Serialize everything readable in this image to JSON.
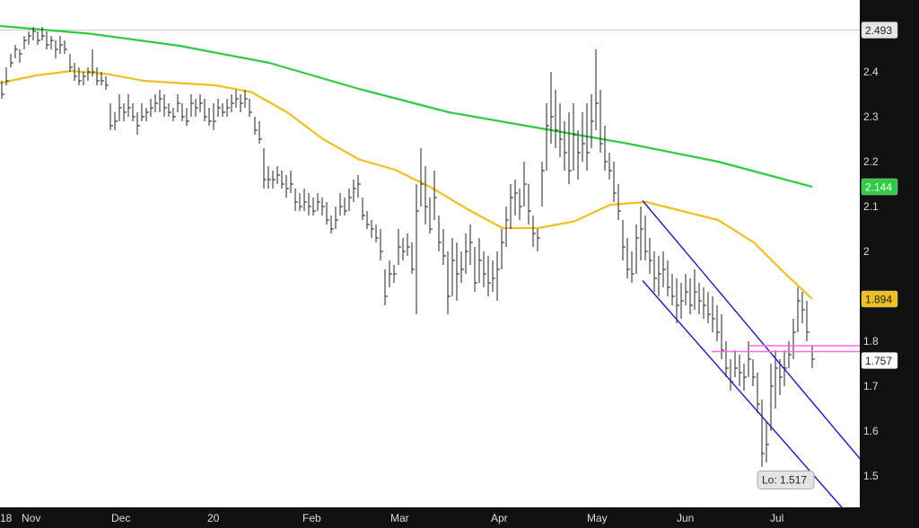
{
  "chart_data": {
    "type": "ohlc",
    "x_ticks": [
      "18",
      "Nov",
      "Dec",
      "20",
      "Feb",
      "Mar",
      "Apr",
      "May",
      "Jun",
      "Jul"
    ],
    "y_ticks": [
      1.5,
      1.6,
      1.7,
      1.8,
      1.9,
      2,
      2.1,
      2.2,
      2.3,
      2.4
    ],
    "ylim": [
      1.43,
      2.56
    ],
    "grid": false,
    "colors": {
      "bars": "#222222",
      "ma_short": "#f0c020",
      "ma_long": "#2ecc40",
      "channel": "#1a1acc",
      "resistance": "#ff66ee",
      "pane": "#111111"
    },
    "price_badges": [
      {
        "id": "reference",
        "value": "2.493",
        "bg": "#e6e6e6",
        "fg": "#222222"
      },
      {
        "id": "ma_long",
        "value": "2.144",
        "bg": "#2ecc40",
        "fg": "#ffffff"
      },
      {
        "id": "ma_short",
        "value": "1.894",
        "bg": "#f0c020",
        "fg": "#222222"
      },
      {
        "id": "last",
        "value": "1.757",
        "bg": "#ffffff",
        "fg": "#222222"
      }
    ],
    "annotation": {
      "label": "Lo: 1.517",
      "value": 1.517
    },
    "reference_line": 2.493,
    "ma_long_series": [
      [
        0,
        2.502
      ],
      [
        100,
        2.485
      ],
      [
        200,
        2.458
      ],
      [
        300,
        2.42
      ],
      [
        400,
        2.362
      ],
      [
        500,
        2.31
      ],
      [
        600,
        2.275
      ],
      [
        700,
        2.24
      ],
      [
        800,
        2.2
      ],
      [
        860,
        2.168
      ],
      [
        905,
        2.144
      ]
    ],
    "ma_short_series": [
      [
        0,
        2.375
      ],
      [
        40,
        2.392
      ],
      [
        80,
        2.402
      ],
      [
        120,
        2.395
      ],
      [
        160,
        2.38
      ],
      [
        200,
        2.375
      ],
      [
        240,
        2.37
      ],
      [
        280,
        2.355
      ],
      [
        320,
        2.31
      ],
      [
        360,
        2.25
      ],
      [
        400,
        2.205
      ],
      [
        440,
        2.182
      ],
      [
        480,
        2.143
      ],
      [
        520,
        2.095
      ],
      [
        560,
        2.052
      ],
      [
        600,
        2.052
      ],
      [
        640,
        2.067
      ],
      [
        680,
        2.104
      ],
      [
        720,
        2.11
      ],
      [
        760,
        2.09
      ],
      [
        800,
        2.07
      ],
      [
        840,
        2.02
      ],
      [
        870,
        1.96
      ],
      [
        905,
        1.894
      ]
    ],
    "channel_lines": [
      {
        "from": [
          716,
          2.113
        ],
        "to": [
          960,
          1.534
        ]
      },
      {
        "from": [
          716,
          1.935
        ],
        "to": [
          938,
          1.43
        ]
      }
    ],
    "resistance_lines": [
      {
        "from": [
          833,
          1.79
        ],
        "to": [
          960,
          1.79
        ]
      },
      {
        "from": [
          793,
          1.777
        ],
        "to": [
          960,
          1.777
        ]
      }
    ],
    "bars": [
      [
        2,
        2.38,
        2.34,
        2.35
      ],
      [
        7,
        2.41,
        2.37,
        2.38
      ],
      [
        12,
        2.44,
        2.41,
        2.42
      ],
      [
        17,
        2.46,
        2.43,
        2.45
      ],
      [
        22,
        2.45,
        2.42,
        2.44
      ],
      [
        27,
        2.48,
        2.45,
        2.47
      ],
      [
        32,
        2.49,
        2.46,
        2.48
      ],
      [
        37,
        2.5,
        2.47,
        2.49
      ],
      [
        42,
        2.49,
        2.46,
        2.47
      ],
      [
        47,
        2.5,
        2.47,
        2.48
      ],
      [
        52,
        2.49,
        2.45,
        2.46
      ],
      [
        57,
        2.48,
        2.45,
        2.47
      ],
      [
        62,
        2.47,
        2.43,
        2.45
      ],
      [
        67,
        2.48,
        2.44,
        2.46
      ],
      [
        72,
        2.47,
        2.44,
        2.45
      ],
      [
        78,
        2.44,
        2.4,
        2.41
      ],
      [
        83,
        2.42,
        2.38,
        2.39
      ],
      [
        88,
        2.41,
        2.37,
        2.38
      ],
      [
        93,
        2.4,
        2.37,
        2.39
      ],
      [
        98,
        2.41,
        2.38,
        2.4
      ],
      [
        103,
        2.45,
        2.39,
        2.4
      ],
      [
        108,
        2.41,
        2.37,
        2.38
      ],
      [
        113,
        2.4,
        2.37,
        2.38
      ],
      [
        118,
        2.39,
        2.36,
        2.37
      ],
      [
        123,
        2.33,
        2.27,
        2.28
      ],
      [
        128,
        2.31,
        2.27,
        2.29
      ],
      [
        133,
        2.35,
        2.29,
        2.32
      ],
      [
        138,
        2.33,
        2.29,
        2.31
      ],
      [
        143,
        2.35,
        2.3,
        2.32
      ],
      [
        148,
        2.33,
        2.29,
        2.3
      ],
      [
        153,
        2.31,
        2.26,
        2.28
      ],
      [
        158,
        2.33,
        2.29,
        2.3
      ],
      [
        163,
        2.32,
        2.29,
        2.31
      ],
      [
        168,
        2.34,
        2.3,
        2.32
      ],
      [
        173,
        2.35,
        2.31,
        2.33
      ],
      [
        178,
        2.36,
        2.31,
        2.34
      ],
      [
        183,
        2.35,
        2.3,
        2.32
      ],
      [
        188,
        2.33,
        2.3,
        2.31
      ],
      [
        193,
        2.32,
        2.29,
        2.3
      ],
      [
        198,
        2.35,
        2.31,
        2.33
      ],
      [
        203,
        2.33,
        2.29,
        2.3
      ],
      [
        208,
        2.32,
        2.28,
        2.29
      ],
      [
        213,
        2.35,
        2.3,
        2.33
      ],
      [
        218,
        2.34,
        2.3,
        2.32
      ],
      [
        223,
        2.35,
        2.31,
        2.33
      ],
      [
        228,
        2.34,
        2.29,
        2.3
      ],
      [
        233,
        2.32,
        2.28,
        2.29
      ],
      [
        238,
        2.33,
        2.27,
        2.29
      ],
      [
        243,
        2.34,
        2.3,
        2.32
      ],
      [
        248,
        2.33,
        2.3,
        2.31
      ],
      [
        253,
        2.34,
        2.3,
        2.32
      ],
      [
        258,
        2.35,
        2.31,
        2.33
      ],
      [
        263,
        2.36,
        2.32,
        2.34
      ],
      [
        268,
        2.35,
        2.31,
        2.33
      ],
      [
        273,
        2.36,
        2.32,
        2.34
      ],
      [
        278,
        2.34,
        2.3,
        2.31
      ],
      [
        284,
        2.3,
        2.26,
        2.27
      ],
      [
        289,
        2.29,
        2.24,
        2.25
      ],
      [
        294,
        2.23,
        2.14,
        2.16
      ],
      [
        299,
        2.19,
        2.14,
        2.16
      ],
      [
        304,
        2.18,
        2.14,
        2.16
      ],
      [
        309,
        2.19,
        2.15,
        2.17
      ],
      [
        314,
        2.18,
        2.14,
        2.15
      ],
      [
        319,
        2.17,
        2.12,
        2.14
      ],
      [
        324,
        2.18,
        2.13,
        2.15
      ],
      [
        329,
        2.14,
        2.09,
        2.11
      ],
      [
        334,
        2.13,
        2.09,
        2.1
      ],
      [
        339,
        2.14,
        2.09,
        2.11
      ],
      [
        344,
        2.13,
        2.08,
        2.1
      ],
      [
        349,
        2.12,
        2.08,
        2.09
      ],
      [
        354,
        2.13,
        2.09,
        2.11
      ],
      [
        359,
        2.12,
        2.08,
        2.1
      ],
      [
        364,
        2.11,
        2.06,
        2.07
      ],
      [
        369,
        2.08,
        2.04,
        2.05
      ],
      [
        374,
        2.1,
        2.05,
        2.07
      ],
      [
        379,
        2.13,
        2.08,
        2.1
      ],
      [
        384,
        2.12,
        2.08,
        2.09
      ],
      [
        389,
        2.14,
        2.09,
        2.12
      ],
      [
        394,
        2.16,
        2.11,
        2.14
      ],
      [
        399,
        2.17,
        2.12,
        2.15
      ],
      [
        404,
        2.12,
        2.07,
        2.08
      ],
      [
        409,
        2.09,
        2.05,
        2.06
      ],
      [
        414,
        2.07,
        2.03,
        2.05
      ],
      [
        419,
        2.06,
        2.02,
        2.03
      ],
      [
        424,
        2.05,
        1.98,
        2.0
      ],
      [
        429,
        1.96,
        1.88,
        1.9
      ],
      [
        434,
        1.98,
        1.92,
        1.95
      ],
      [
        439,
        1.97,
        1.93,
        1.95
      ],
      [
        444,
        2.05,
        1.97,
        2.01
      ],
      [
        449,
        2.03,
        1.98,
        2.0
      ],
      [
        454,
        2.04,
        1.99,
        2.01
      ],
      [
        459,
        2.02,
        1.95,
        1.96
      ],
      [
        464,
        2.15,
        1.86,
        2.09
      ],
      [
        469,
        2.23,
        2.1,
        2.15
      ],
      [
        474,
        2.19,
        2.06,
        2.1
      ],
      [
        479,
        2.12,
        2.04,
        2.05
      ],
      [
        484,
        2.18,
        2.07,
        2.12
      ],
      [
        489,
        2.08,
        2.0,
        2.02
      ],
      [
        494,
        2.05,
        1.97,
        1.99
      ],
      [
        499,
        2.0,
        1.86,
        1.9
      ],
      [
        504,
        2.03,
        1.9,
        1.98
      ],
      [
        509,
        2.02,
        1.89,
        1.95
      ],
      [
        514,
        2.0,
        1.93,
        1.96
      ],
      [
        519,
        2.04,
        1.95,
        2.0
      ],
      [
        524,
        2.06,
        1.97,
        2.02
      ],
      [
        529,
        2.01,
        1.91,
        1.93
      ],
      [
        534,
        2.03,
        1.93,
        1.98
      ],
      [
        539,
        2.0,
        1.92,
        1.95
      ],
      [
        544,
        1.99,
        1.9,
        1.93
      ],
      [
        549,
        1.98,
        1.91,
        1.94
      ],
      [
        554,
        2.0,
        1.89,
        1.96
      ],
      [
        559,
        2.05,
        1.96,
        2.02
      ],
      [
        564,
        2.1,
        2.01,
        2.07
      ],
      [
        569,
        2.15,
        2.05,
        2.12
      ],
      [
        574,
        2.16,
        2.08,
        2.13
      ],
      [
        579,
        2.14,
        2.07,
        2.1
      ],
      [
        584,
        2.2,
        2.1,
        2.15
      ],
      [
        589,
        2.15,
        2.06,
        2.09
      ],
      [
        594,
        2.08,
        2.01,
        2.04
      ],
      [
        599,
        2.05,
        2.0,
        2.03
      ],
      [
        604,
        2.2,
        2.1,
        2.18
      ],
      [
        609,
        2.33,
        2.18,
        2.28
      ],
      [
        614,
        2.4,
        2.24,
        2.3
      ],
      [
        619,
        2.36,
        2.23,
        2.27
      ],
      [
        624,
        2.33,
        2.21,
        2.25
      ],
      [
        629,
        2.29,
        2.18,
        2.22
      ],
      [
        634,
        2.31,
        2.15,
        2.18
      ],
      [
        639,
        2.33,
        2.18,
        2.26
      ],
      [
        644,
        2.27,
        2.16,
        2.22
      ],
      [
        649,
        2.31,
        2.2,
        2.24
      ],
      [
        654,
        2.33,
        2.18,
        2.22
      ],
      [
        659,
        2.35,
        2.23,
        2.29
      ],
      [
        664,
        2.45,
        2.27,
        2.33
      ],
      [
        669,
        2.36,
        2.22,
        2.24
      ],
      [
        674,
        2.28,
        2.18,
        2.2
      ],
      [
        679,
        2.22,
        2.16,
        2.18
      ],
      [
        684,
        2.2,
        2.11,
        2.13
      ],
      [
        689,
        2.15,
        2.07,
        2.09
      ],
      [
        694,
        2.07,
        1.98,
        2.01
      ],
      [
        699,
        2.03,
        1.94,
        1.96
      ],
      [
        704,
        2.0,
        1.93,
        1.95
      ],
      [
        709,
        2.06,
        1.95,
        2.03
      ],
      [
        714,
        2.1,
        1.98,
        2.05
      ],
      [
        719,
        2.08,
        1.98,
        2.0
      ],
      [
        724,
        2.03,
        1.95,
        1.98
      ],
      [
        729,
        2.0,
        1.91,
        1.94
      ],
      [
        734,
        1.99,
        1.9,
        1.95
      ],
      [
        739,
        2.0,
        1.92,
        1.96
      ],
      [
        744,
        1.98,
        1.9,
        1.92
      ],
      [
        749,
        1.95,
        1.88,
        1.9
      ],
      [
        754,
        1.94,
        1.84,
        1.88
      ],
      [
        759,
        1.93,
        1.85,
        1.89
      ],
      [
        764,
        1.95,
        1.88,
        1.91
      ],
      [
        769,
        1.94,
        1.86,
        1.88
      ],
      [
        774,
        1.96,
        1.87,
        1.91
      ],
      [
        779,
        1.93,
        1.86,
        1.89
      ],
      [
        784,
        1.92,
        1.85,
        1.88
      ],
      [
        789,
        1.91,
        1.84,
        1.86
      ],
      [
        794,
        1.9,
        1.82,
        1.85
      ],
      [
        799,
        1.88,
        1.8,
        1.82
      ],
      [
        804,
        1.86,
        1.76,
        1.78
      ],
      [
        809,
        1.8,
        1.72,
        1.74
      ],
      [
        814,
        1.76,
        1.69,
        1.71
      ],
      [
        819,
        1.78,
        1.72,
        1.74
      ],
      [
        824,
        1.77,
        1.7,
        1.73
      ],
      [
        829,
        1.75,
        1.69,
        1.72
      ],
      [
        834,
        1.8,
        1.72,
        1.76
      ],
      [
        839,
        1.76,
        1.7,
        1.72
      ],
      [
        844,
        1.73,
        1.64,
        1.66
      ],
      [
        849,
        1.67,
        1.52,
        1.55
      ],
      [
        854,
        1.62,
        1.53,
        1.57
      ],
      [
        859,
        1.75,
        1.6,
        1.7
      ],
      [
        864,
        1.78,
        1.65,
        1.74
      ],
      [
        869,
        1.76,
        1.68,
        1.72
      ],
      [
        874,
        1.78,
        1.7,
        1.74
      ],
      [
        879,
        1.8,
        1.74,
        1.77
      ],
      [
        884,
        1.85,
        1.76,
        1.82
      ],
      [
        889,
        1.92,
        1.82,
        1.89
      ],
      [
        894,
        1.91,
        1.84,
        1.87
      ],
      [
        899,
        1.89,
        1.8,
        1.82
      ],
      [
        905,
        1.79,
        1.74,
        1.76
      ]
    ]
  }
}
